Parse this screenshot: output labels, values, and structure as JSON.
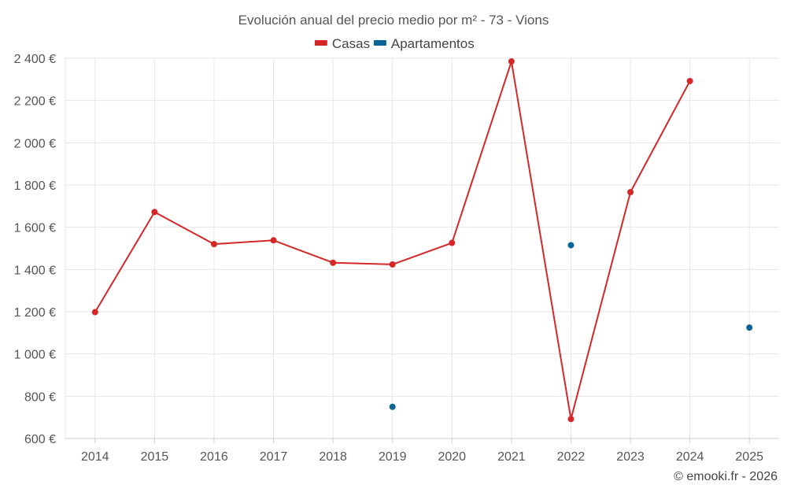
{
  "chart_data": {
    "type": "line",
    "title": "Evolución anual del precio medio por m² - 73 - Vions",
    "categories": [
      "2014",
      "2015",
      "2016",
      "2017",
      "2018",
      "2019",
      "2020",
      "2021",
      "2022",
      "2023",
      "2024",
      "2025"
    ],
    "ylim": [
      600,
      2400
    ],
    "yticks": [
      600,
      800,
      1000,
      1200,
      1400,
      1600,
      1800,
      2000,
      2200,
      2400
    ],
    "ytick_labels": [
      "600 €",
      "800 €",
      "1 000 €",
      "1 200 €",
      "1 400 €",
      "1 600 €",
      "1 800 €",
      "2 000 €",
      "2 200 €",
      "2 400 €"
    ],
    "grid": true,
    "legend_position": "top-center",
    "series": [
      {
        "name": "Casas",
        "color": "#d62728",
        "style": "line",
        "values": [
          1198,
          1672,
          1520,
          1538,
          1432,
          1424,
          1526,
          2385,
          692,
          1766,
          2292,
          null
        ]
      },
      {
        "name": "Apartamentos",
        "color": "#0a6496",
        "style": "markers",
        "values": [
          null,
          null,
          null,
          null,
          null,
          750,
          null,
          null,
          1515,
          null,
          null,
          1125
        ]
      }
    ]
  },
  "credit": "© emooki.fr - 2026"
}
